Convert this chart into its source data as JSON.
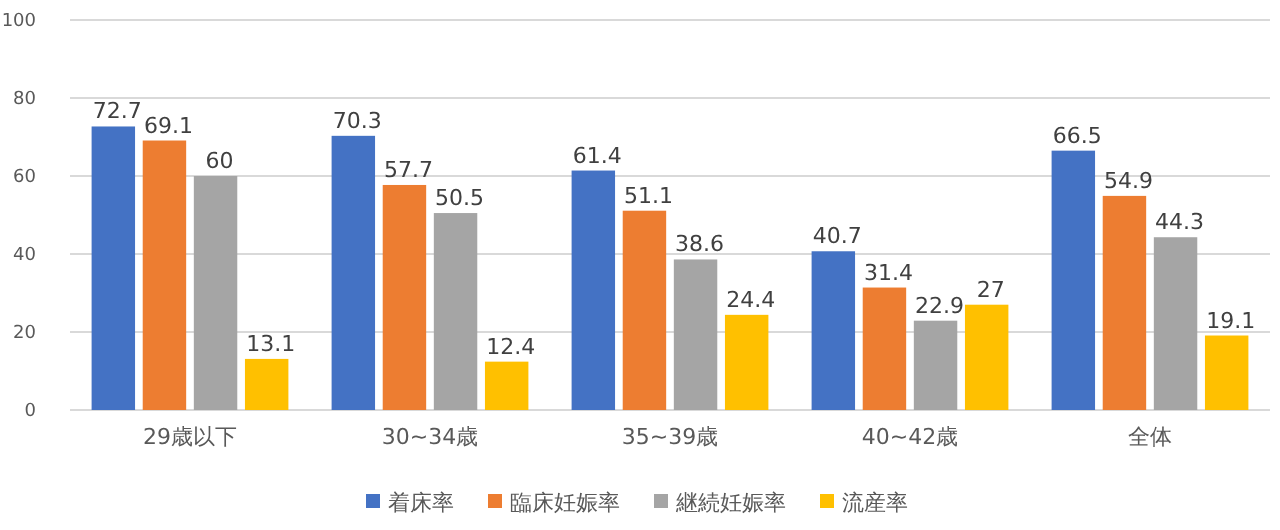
{
  "chart_data": {
    "type": "bar",
    "categories": [
      "29歳以下",
      "30~34歳",
      "35~39歳",
      "40~42歳",
      "全体"
    ],
    "series": [
      {
        "name": "着床率",
        "color": "#4472c4",
        "values": [
          72.7,
          70.3,
          61.4,
          40.7,
          66.5
        ]
      },
      {
        "name": "臨床妊娠率",
        "color": "#ed7d31",
        "values": [
          69.1,
          57.7,
          51.1,
          31.4,
          54.9
        ]
      },
      {
        "name": "継続妊娠率",
        "color": "#a5a5a5",
        "values": [
          60,
          50.5,
          38.6,
          22.9,
          44.3
        ]
      },
      {
        "name": "流産率",
        "color": "#ffc000",
        "values": [
          13.1,
          12.4,
          24.4,
          27,
          19.1
        ]
      }
    ],
    "ylim": [
      0,
      100
    ],
    "yticks": [
      0,
      20,
      40,
      60,
      80,
      100
    ],
    "grid": "y",
    "legend": "bottom",
    "data_labels": true
  }
}
